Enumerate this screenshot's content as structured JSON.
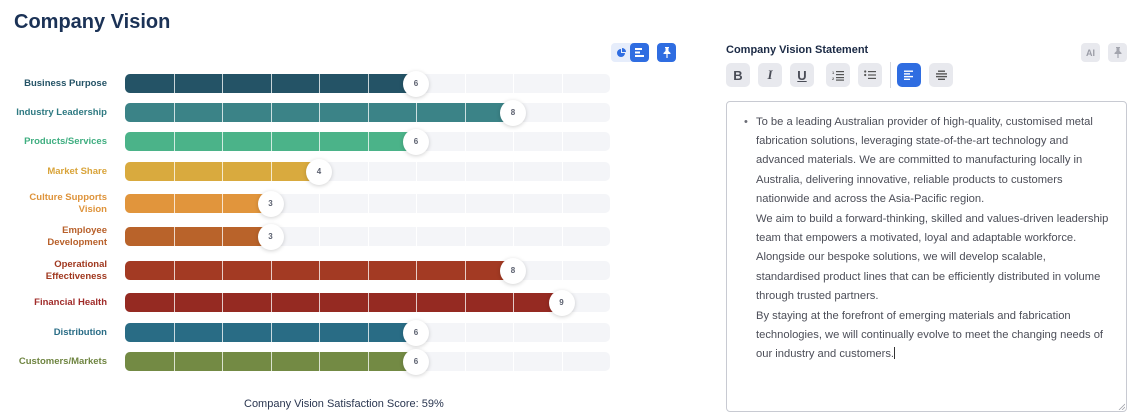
{
  "header": {
    "title": "Company Vision"
  },
  "chart_toolbar": {
    "buttons": [
      {
        "icon": "pie-chart-icon",
        "active": false
      },
      {
        "icon": "bar-list-icon",
        "active": true
      },
      {
        "icon": "pin-icon",
        "active": true
      }
    ]
  },
  "chart_data": {
    "type": "bar",
    "orientation": "horizontal",
    "max": 10,
    "categories": [
      "Business Purpose",
      "Industry Leadership",
      "Products/Services",
      "Market Share",
      "Culture Supports Vision",
      "Employee Development",
      "Operational Effectiveness",
      "Financial Health",
      "Distribution",
      "Customers/Markets"
    ],
    "label_lines": [
      [
        "Business Purpose"
      ],
      [
        "Industry Leadership"
      ],
      [
        "Products/Services"
      ],
      [
        "Market Share"
      ],
      [
        "Culture Supports",
        "Vision"
      ],
      [
        "Employee",
        "Development"
      ],
      [
        "Operational",
        "Effectiveness"
      ],
      [
        "Financial Health"
      ],
      [
        "Distribution"
      ],
      [
        "Customers/Markets"
      ]
    ],
    "values": [
      6,
      8,
      6,
      4,
      3,
      3,
      8,
      9,
      6,
      6
    ],
    "colors": [
      "#245366",
      "#3b8387",
      "#4bb389",
      "#d9aa3e",
      "#e1953c",
      "#b9632a",
      "#a33a23",
      "#952a22",
      "#296c85",
      "#738a44"
    ],
    "label_colors": [
      "#245366",
      "#2f7a82",
      "#3fae80",
      "#d9a43a",
      "#de933a",
      "#b8602a",
      "#a0381f",
      "#a02c2a",
      "#2a6d86",
      "#6f8541"
    ]
  },
  "score": {
    "text": "Company Vision Satisfaction Score: 59%"
  },
  "statement": {
    "label": "Company Vision Statement",
    "ai_label": "AI",
    "toolbar": {
      "bold": "B",
      "italic": "I",
      "underline": "U"
    },
    "bullet": "•",
    "paragraphs": [
      "To be a leading Australian provider of high-quality, customised metal fabrication solutions, leveraging state-of-the-art technology and advanced materials. We are committed to manufacturing locally in Australia, delivering innovative, reliable products to customers nationwide and across the Asia-Pacific region.",
      "We aim to build a forward-thinking, skilled and values-driven leadership team that empowers a motivated, loyal and adaptable workforce. Alongside our bespoke solutions, we will develop scalable, standardised product lines that can be efficiently distributed in volume through trusted partners.",
      "By staying at the forefront of emerging materials and fabrication technologies, we will continually evolve to meet the changing needs of our industry and customers."
    ]
  }
}
